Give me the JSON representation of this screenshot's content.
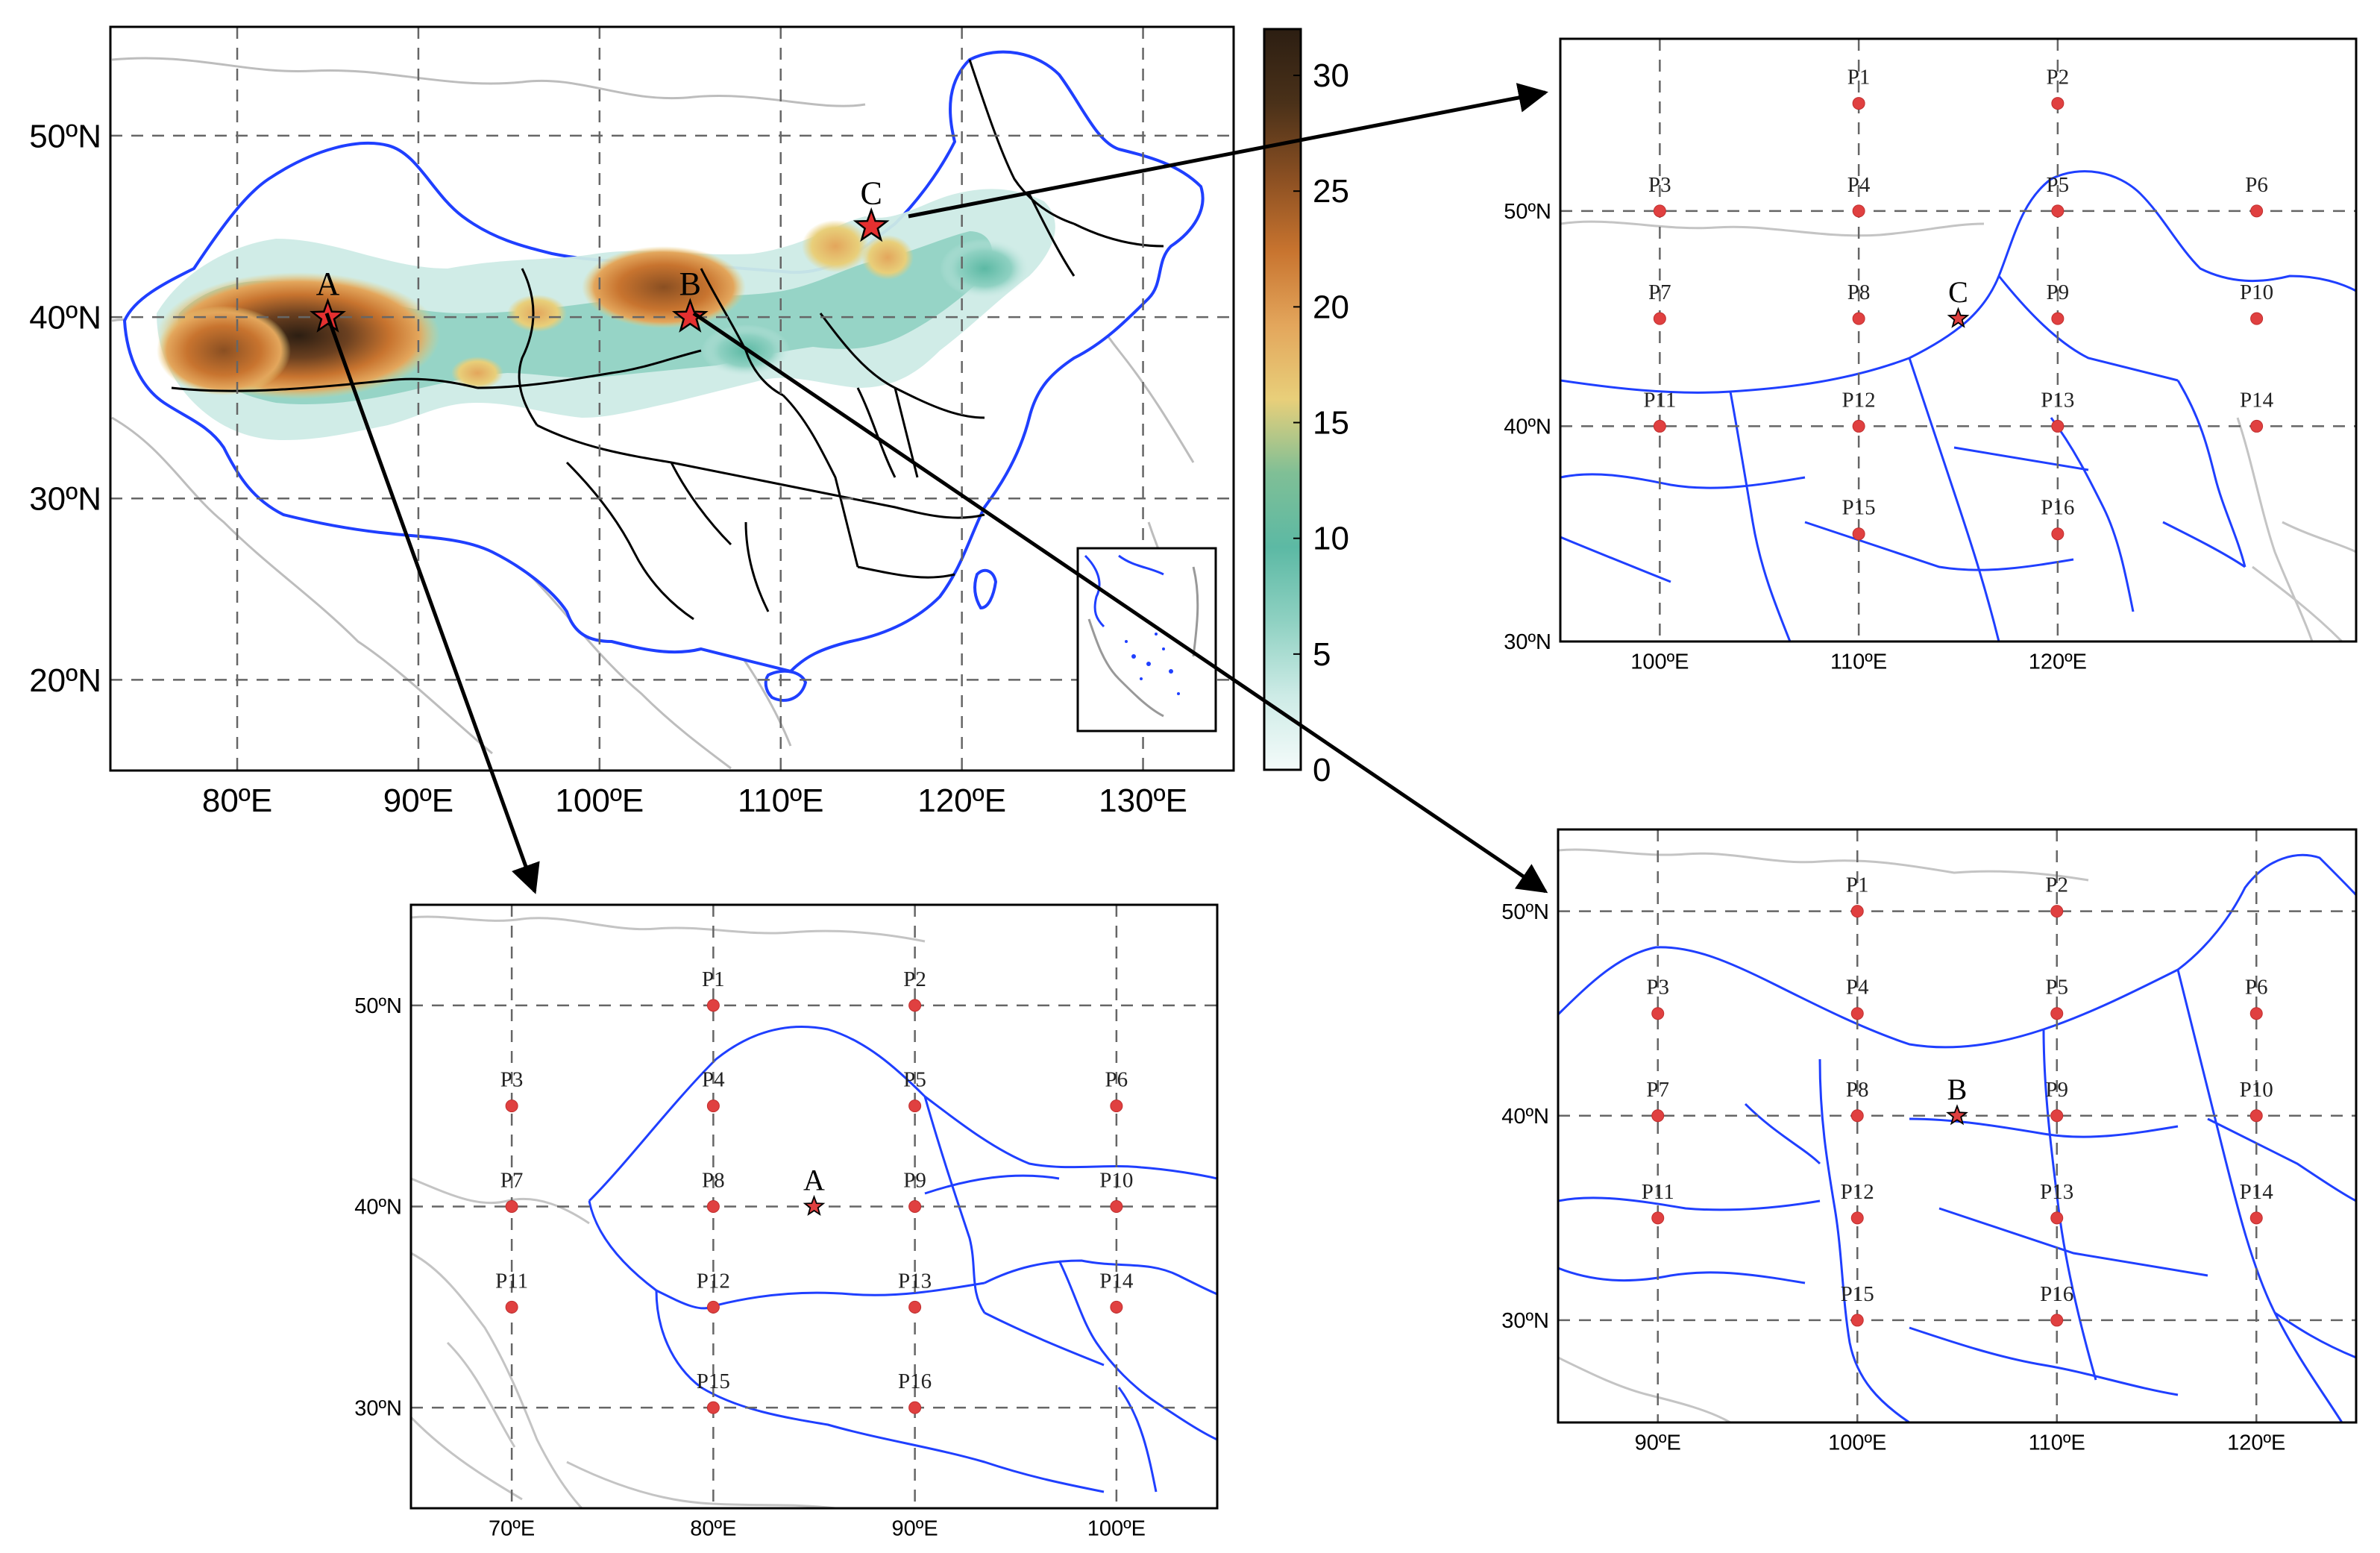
{
  "main_map": {
    "lat_labels": [
      "50ºN",
      "40ºN",
      "30ºN",
      "20ºN"
    ],
    "lon_labels": [
      "80ºE",
      "90ºE",
      "100ºE",
      "110ºE",
      "120ºE",
      "130ºE"
    ],
    "lat_values": [
      50,
      40,
      30,
      20
    ],
    "lon_values": [
      80,
      90,
      100,
      110,
      120,
      130
    ],
    "extent": {
      "lon": [
        73,
        135
      ],
      "lat": [
        15,
        56
      ]
    },
    "colorbar": {
      "ticks": [
        "30",
        "25",
        "20",
        "15",
        "10",
        "5",
        "0"
      ],
      "tick_values": [
        30,
        25,
        20,
        15,
        10,
        5,
        0
      ],
      "range": [
        0,
        32
      ],
      "stops": [
        "#f4fbfa",
        "#cdebe6",
        "#8fd1c2",
        "#5cb9a4",
        "#7fbf96",
        "#e8cf7a",
        "#e3a65c",
        "#c8742f",
        "#8a4f22",
        "#4a3119",
        "#2c1e12"
      ]
    },
    "sites": [
      {
        "label": "A",
        "lon": 85,
        "lat": 40
      },
      {
        "label": "B",
        "lon": 105,
        "lat": 40
      },
      {
        "label": "C",
        "lon": 115,
        "lat": 45
      }
    ],
    "colors": {
      "grid": "#555555",
      "china_border": "#1f3fff",
      "province": "#000000",
      "neighbor": "#bbbbbb",
      "site_star": "#e53030"
    }
  },
  "inset_A": {
    "lat_labels": [
      "50ºN",
      "40ºN",
      "30ºN"
    ],
    "lon_labels": [
      "70ºE",
      "80ºE",
      "90ºE",
      "100ºE"
    ],
    "lat_values": [
      50,
      40,
      30
    ],
    "lon_values": [
      70,
      80,
      90,
      100
    ],
    "extent": {
      "lon": [
        65,
        105
      ],
      "lat": [
        25,
        55
      ]
    },
    "center": {
      "label": "A",
      "lon": 85,
      "lat": 40
    },
    "points": [
      {
        "label": "P1",
        "lon": 80,
        "lat": 50
      },
      {
        "label": "P2",
        "lon": 90,
        "lat": 50
      },
      {
        "label": "P3",
        "lon": 70,
        "lat": 45
      },
      {
        "label": "P4",
        "lon": 80,
        "lat": 45
      },
      {
        "label": "P5",
        "lon": 90,
        "lat": 45
      },
      {
        "label": "P6",
        "lon": 100,
        "lat": 45
      },
      {
        "label": "P7",
        "lon": 70,
        "lat": 40
      },
      {
        "label": "P8",
        "lon": 80,
        "lat": 40
      },
      {
        "label": "P9",
        "lon": 90,
        "lat": 40
      },
      {
        "label": "P10",
        "lon": 100,
        "lat": 40
      },
      {
        "label": "P11",
        "lon": 70,
        "lat": 35
      },
      {
        "label": "P12",
        "lon": 80,
        "lat": 35
      },
      {
        "label": "P13",
        "lon": 90,
        "lat": 35
      },
      {
        "label": "P14",
        "lon": 100,
        "lat": 35
      },
      {
        "label": "P15",
        "lon": 80,
        "lat": 30
      },
      {
        "label": "P16",
        "lon": 90,
        "lat": 30
      }
    ]
  },
  "inset_B": {
    "lat_labels": [
      "50ºN",
      "40ºN",
      "30ºN"
    ],
    "lon_labels": [
      "90ºE",
      "100ºE",
      "110ºE",
      "120ºE"
    ],
    "lat_values": [
      50,
      40,
      30
    ],
    "lon_values": [
      90,
      100,
      110,
      120
    ],
    "extent": {
      "lon": [
        85,
        125
      ],
      "lat": [
        25,
        54
      ]
    },
    "center": {
      "label": "B",
      "lon": 105,
      "lat": 40
    },
    "points": [
      {
        "label": "P1",
        "lon": 100,
        "lat": 50
      },
      {
        "label": "P2",
        "lon": 110,
        "lat": 50
      },
      {
        "label": "P3",
        "lon": 90,
        "lat": 45
      },
      {
        "label": "P4",
        "lon": 100,
        "lat": 45
      },
      {
        "label": "P5",
        "lon": 110,
        "lat": 45
      },
      {
        "label": "P6",
        "lon": 120,
        "lat": 45
      },
      {
        "label": "P7",
        "lon": 90,
        "lat": 40
      },
      {
        "label": "P8",
        "lon": 100,
        "lat": 40
      },
      {
        "label": "P9",
        "lon": 110,
        "lat": 40
      },
      {
        "label": "P10",
        "lon": 120,
        "lat": 40
      },
      {
        "label": "P11",
        "lon": 90,
        "lat": 35
      },
      {
        "label": "P12",
        "lon": 100,
        "lat": 35
      },
      {
        "label": "P13",
        "lon": 110,
        "lat": 35
      },
      {
        "label": "P14",
        "lon": 120,
        "lat": 35
      },
      {
        "label": "P15",
        "lon": 100,
        "lat": 30
      },
      {
        "label": "P16",
        "lon": 110,
        "lat": 30
      }
    ]
  },
  "inset_C": {
    "lat_labels": [
      "50ºN",
      "40ºN",
      "30ºN"
    ],
    "lon_labels": [
      "100ºE",
      "110ºE",
      "120ºE"
    ],
    "lat_values": [
      50,
      40,
      30
    ],
    "lon_values": [
      100,
      110,
      120
    ],
    "extent": {
      "lon": [
        95,
        135
      ],
      "lat": [
        30,
        58
      ]
    },
    "center": {
      "label": "C",
      "lon": 115,
      "lat": 45
    },
    "points": [
      {
        "label": "P1",
        "lon": 110,
        "lat": 55
      },
      {
        "label": "P2",
        "lon": 120,
        "lat": 55
      },
      {
        "label": "P3",
        "lon": 100,
        "lat": 50
      },
      {
        "label": "P4",
        "lon": 110,
        "lat": 50
      },
      {
        "label": "P5",
        "lon": 120,
        "lat": 50
      },
      {
        "label": "P6",
        "lon": 130,
        "lat": 50
      },
      {
        "label": "P7",
        "lon": 100,
        "lat": 45
      },
      {
        "label": "P8",
        "lon": 110,
        "lat": 45
      },
      {
        "label": "P9",
        "lon": 120,
        "lat": 45
      },
      {
        "label": "P10",
        "lon": 130,
        "lat": 45
      },
      {
        "label": "P11",
        "lon": 100,
        "lat": 40
      },
      {
        "label": "P12",
        "lon": 110,
        "lat": 40
      },
      {
        "label": "P13",
        "lon": 120,
        "lat": 40
      },
      {
        "label": "P14",
        "lon": 130,
        "lat": 40
      },
      {
        "label": "P15",
        "lon": 110,
        "lat": 35
      },
      {
        "label": "P16",
        "lon": 120,
        "lat": 35
      }
    ]
  }
}
